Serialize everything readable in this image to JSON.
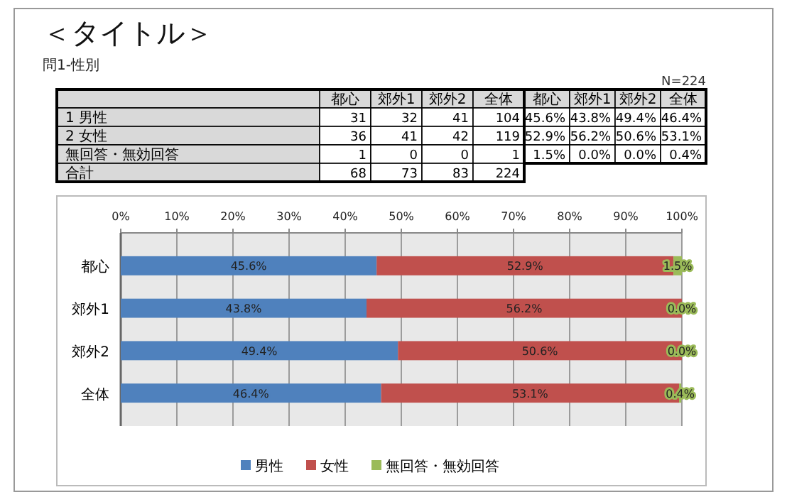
{
  "chart_data": [
    {
      "type": "other",
      "title": "＜タイトル＞",
      "subtitle": "問1-性別",
      "categories": [
        "都心",
        "郊外1",
        "郊外2",
        "全体"
      ],
      "y_categories": [
        "1 男性",
        "2 女性",
        "無回答・無効回答",
        "合計"
      ],
      "annotations": [
        "31",
        "32",
        "41",
        "104",
        "36",
        "41",
        "42",
        "119",
        "1",
        "0",
        "0",
        "1",
        "68",
        "73",
        "83",
        "224"
      ]
    },
    {
      "type": "bar",
      "annotations": [
        "N=224"
      ],
      "orientation": "horizontal",
      "stacked": true,
      "categories": [
        "都心",
        "郊外1",
        "郊外2",
        "全体"
      ],
      "series": [
        {
          "name": "男性",
          "color": "#4f81bd",
          "values": [
            45.6,
            43.8,
            49.4,
            46.4
          ],
          "value_labels": [
            "45.6%",
            "43.8%",
            "49.4%",
            "46.4%"
          ]
        },
        {
          "name": "女性",
          "color": "#c0504d",
          "values": [
            52.9,
            56.2,
            50.6,
            53.1
          ],
          "value_labels": [
            "52.9%",
            "56.2%",
            "50.6%",
            "53.1%"
          ]
        },
        {
          "name": "無回答・無効回答",
          "color": "#9bbb59",
          "values": [
            1.5,
            0.0,
            0.0,
            0.4
          ],
          "value_labels": [
            "1.5%",
            "0.0%",
            "0.0%",
            "0.4%"
          ]
        }
      ],
      "xlim": [
        0,
        100
      ],
      "xticks": [
        {
          "value": 0,
          "label": "0%"
        },
        {
          "value": 10,
          "label": "10%"
        },
        {
          "value": 20,
          "label": "20%"
        },
        {
          "value": 30,
          "label": "30%"
        },
        {
          "value": 40,
          "label": "40%"
        },
        {
          "value": 50,
          "label": "50%"
        },
        {
          "value": 60,
          "label": "60%"
        },
        {
          "value": 70,
          "label": "70%"
        },
        {
          "value": 80,
          "label": "80%"
        },
        {
          "value": 90,
          "label": "90%"
        },
        {
          "value": 100,
          "label": "100%"
        }
      ],
      "grid": "x",
      "legend": "bottom"
    }
  ]
}
